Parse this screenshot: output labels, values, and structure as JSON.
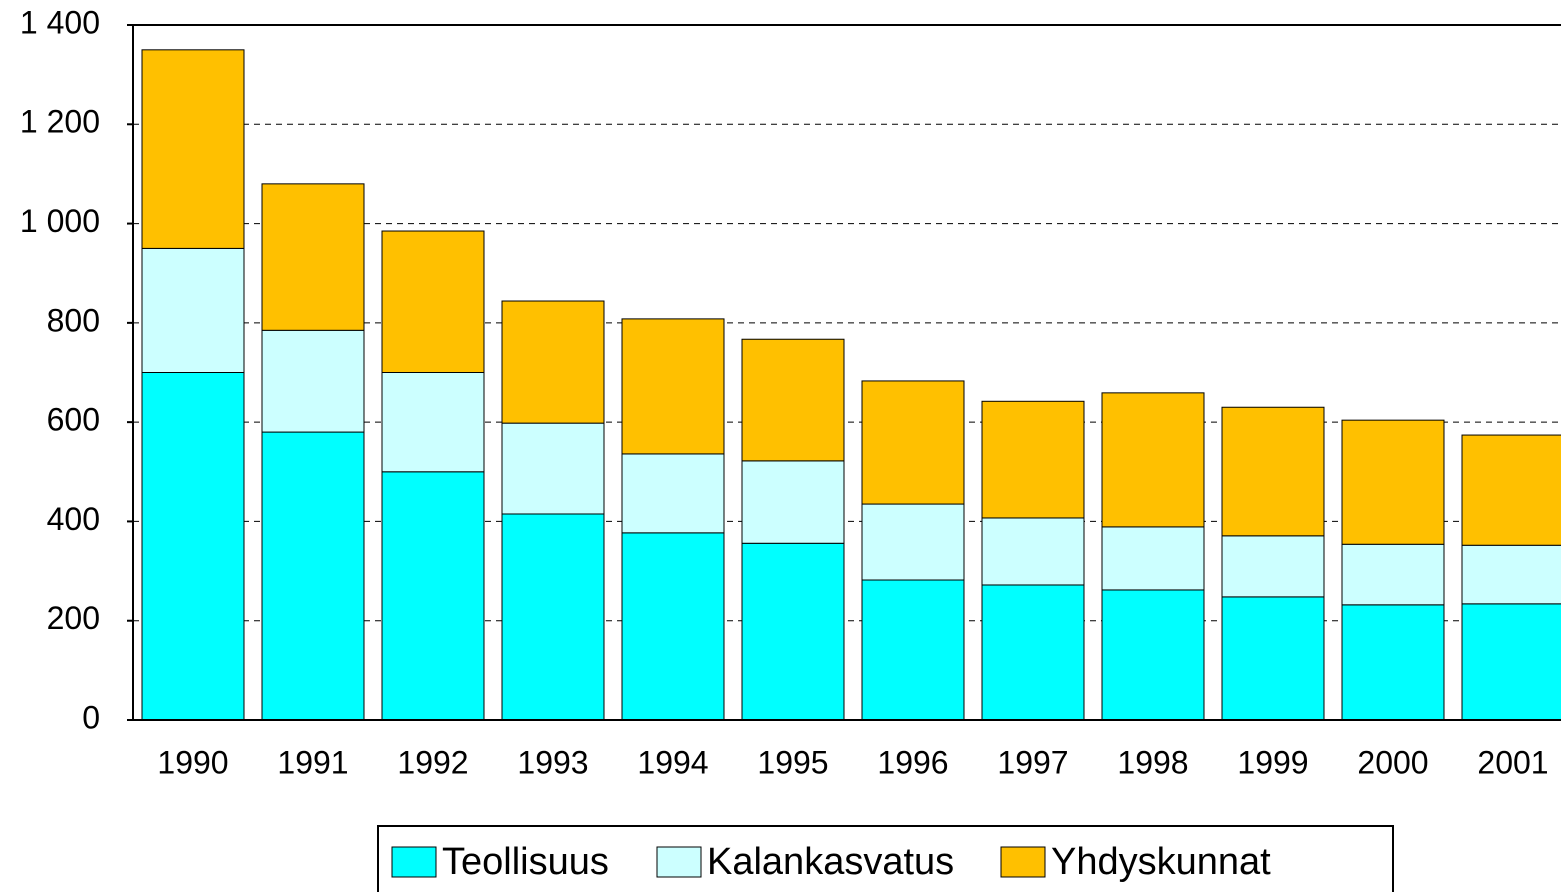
{
  "chart_data": {
    "type": "stacked_bar",
    "categories": [
      "1990",
      "1991",
      "1992",
      "1993",
      "1994",
      "1995",
      "1996",
      "1997",
      "1998",
      "1999",
      "2000",
      "2001"
    ],
    "series": [
      {
        "name": "Teollisuus",
        "color": "#00ffff",
        "values": [
          700,
          580,
          500,
          415,
          377,
          356,
          282,
          272,
          262,
          248,
          232,
          234
        ]
      },
      {
        "name": "Kalankasvatus",
        "color": "#ccffff",
        "values": [
          250,
          205,
          200,
          183,
          159,
          166,
          153,
          135,
          127,
          123,
          122,
          118
        ]
      },
      {
        "name": "Yhdyskunnat",
        "color": "#ffc000",
        "values": [
          400,
          295,
          285,
          246,
          272,
          245,
          248,
          235,
          270,
          259,
          250,
          222
        ]
      }
    ],
    "ylim": [
      0,
      1400
    ],
    "yticks": [
      0,
      200,
      400,
      600,
      800,
      {
        "value": 1000,
        "label": "1 000"
      },
      {
        "value": 1200,
        "label": "1 200"
      },
      {
        "value": 1400,
        "label": "1 400"
      }
    ],
    "grid": true
  }
}
